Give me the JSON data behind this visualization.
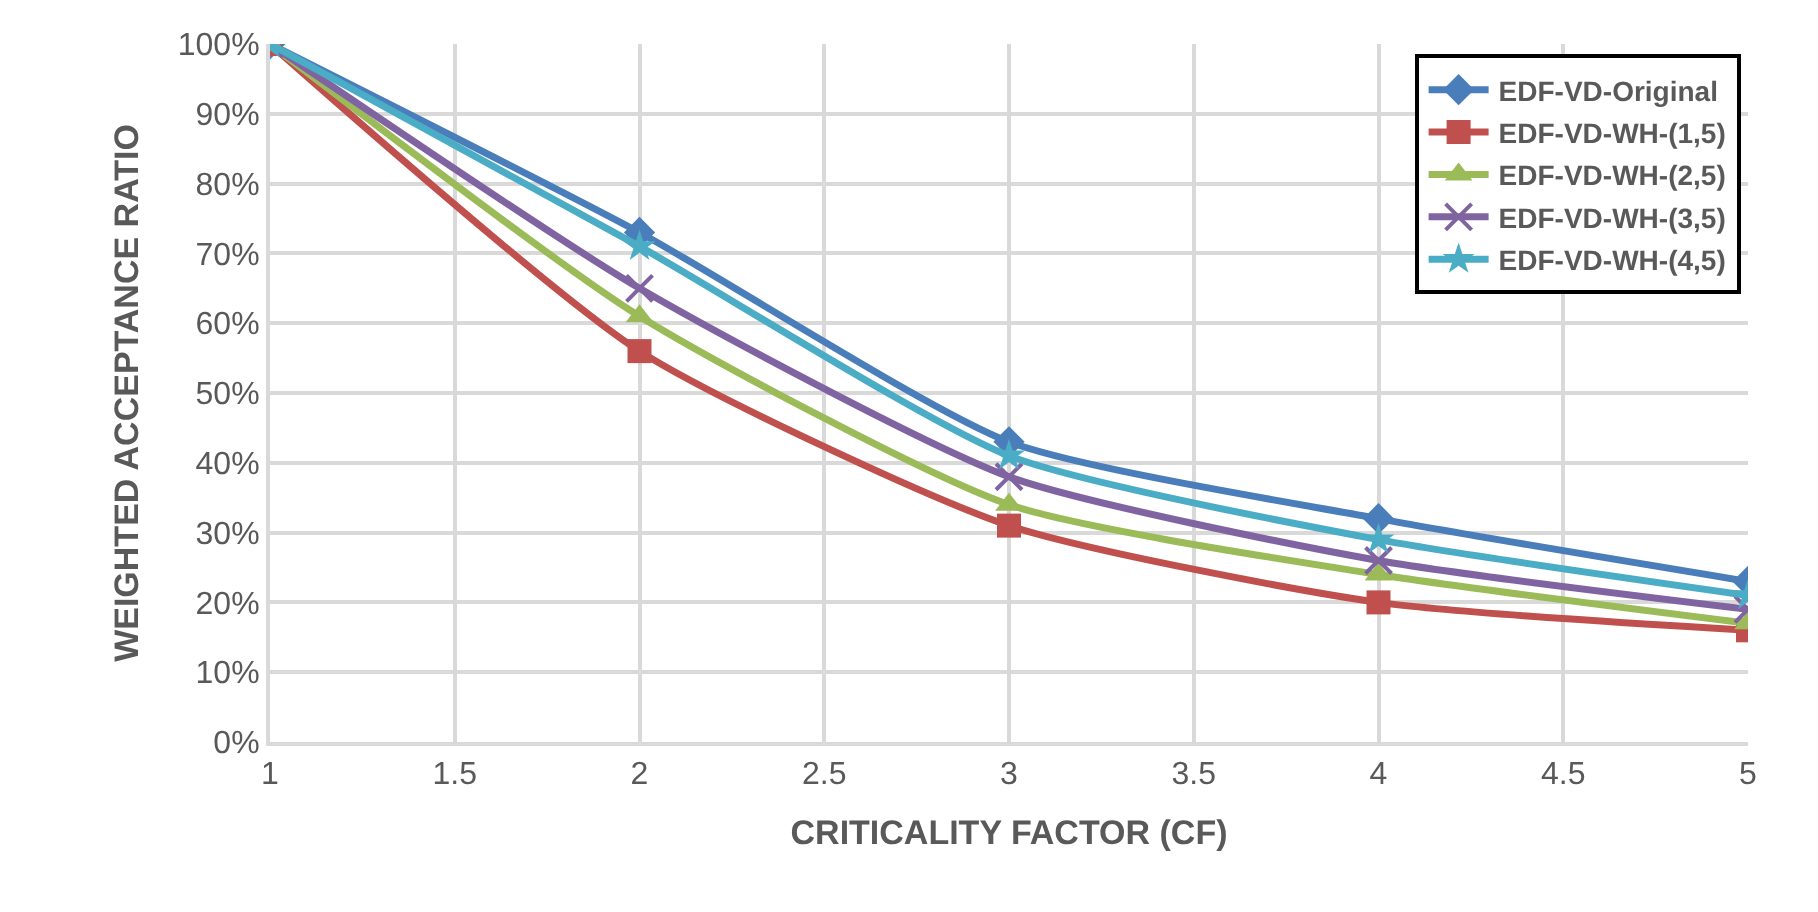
{
  "chart_data": {
    "type": "line",
    "xlabel": "CRITICALITY FACTOR (CF)",
    "ylabel": "WEIGHTED ACCEPTANCE RATIO",
    "x": [
      1,
      2,
      3,
      4,
      5
    ],
    "series": [
      {
        "name": "EDF-VD-Original",
        "color": "#4a7ebb",
        "marker": "diamond",
        "values": [
          100,
          73,
          43,
          32,
          23
        ]
      },
      {
        "name": "EDF-VD-WH-(1,5)",
        "color": "#c0504d",
        "marker": "square",
        "values": [
          100,
          56,
          31,
          20,
          16
        ]
      },
      {
        "name": "EDF-VD-WH-(2,5)",
        "color": "#9bbb59",
        "marker": "triangle",
        "values": [
          100,
          61,
          34,
          24,
          17
        ]
      },
      {
        "name": "EDF-VD-WH-(3,5)",
        "color": "#8064a2",
        "marker": "cross",
        "values": [
          100,
          65,
          38,
          26,
          19
        ]
      },
      {
        "name": "EDF-VD-WH-(4,5)",
        "color": "#4bacc6",
        "marker": "star",
        "values": [
          100,
          71,
          41,
          29,
          21
        ]
      }
    ],
    "xlim": [
      1,
      5
    ],
    "xticks": [
      1,
      1.5,
      2,
      2.5,
      3,
      3.5,
      4,
      4.5,
      5
    ],
    "ylim": [
      0,
      100
    ],
    "yticks": [
      {
        "value": 0,
        "label": "0%"
      },
      {
        "value": 10,
        "label": "10%"
      },
      {
        "value": 20,
        "label": "20%"
      },
      {
        "value": 30,
        "label": "30%"
      },
      {
        "value": 40,
        "label": "40%"
      },
      {
        "value": 50,
        "label": "50%"
      },
      {
        "value": 60,
        "label": "60%"
      },
      {
        "value": 70,
        "label": "70%"
      },
      {
        "value": 80,
        "label": "80%"
      },
      {
        "value": 90,
        "label": "90%"
      },
      {
        "value": 100,
        "label": "100%"
      }
    ],
    "grid": true,
    "legend": "top right",
    "line_style": "solid"
  }
}
